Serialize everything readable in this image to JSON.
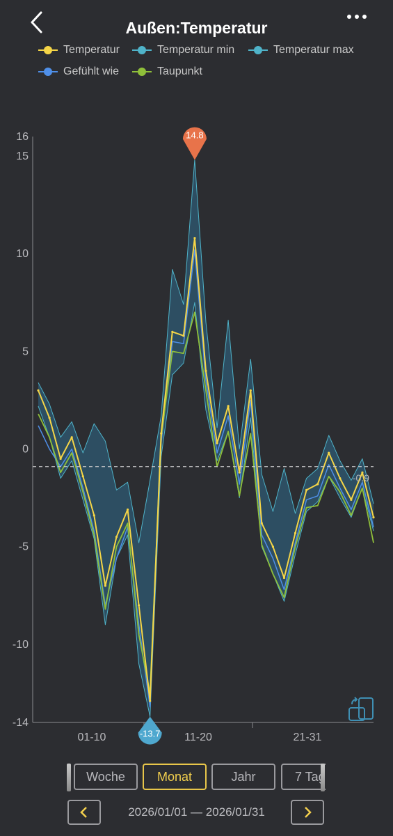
{
  "header": {
    "title": "Außen:Temperatur",
    "back_icon": "chevron-left-icon",
    "more_icon": "more-dots-icon"
  },
  "legend": [
    {
      "name": "Temperatur",
      "color": "#f5d547"
    },
    {
      "name": "Temperatur min",
      "color": "#4fb3c9"
    },
    {
      "name": "Temperatur max",
      "color": "#4fb3c9"
    },
    {
      "name": "Gefühlt wie",
      "color": "#4f8fe8"
    },
    {
      "name": "Taupunkt",
      "color": "#8fbf3a"
    }
  ],
  "chart_data": {
    "type": "line",
    "title": "Außen:Temperatur",
    "xlabel": "",
    "ylabel": "",
    "ylim": [
      -14,
      16
    ],
    "y_ticks": [
      16,
      15,
      10,
      5,
      0,
      -5,
      -10,
      -14
    ],
    "x_tick_labels": [
      "01-10",
      "11-20",
      "21-31"
    ],
    "reference_line": {
      "value": -0.9,
      "label": "-0.9",
      "style": "dashed"
    },
    "max_marker": {
      "value": 14.8,
      "label": "14.8",
      "color": "#e8734a"
    },
    "min_marker": {
      "value": -13.7,
      "label": "-13.7",
      "color": "#4fa8cf"
    },
    "x": [
      "01-01",
      "01-02",
      "01-03",
      "01-04",
      "01-05",
      "01-06",
      "01-07",
      "01-08",
      "01-09",
      "01-10",
      "01-11",
      "01-12",
      "01-13",
      "01-14",
      "01-15",
      "01-16",
      "01-17",
      "01-18",
      "01-19",
      "01-20",
      "01-21",
      "01-22",
      "01-23",
      "01-24",
      "01-25",
      "01-26",
      "01-27",
      "01-28",
      "01-29",
      "01-30",
      "01-31"
    ],
    "series": [
      {
        "name": "Temperatur",
        "color": "#f5d547",
        "values": [
          3.0,
          1.6,
          -0.5,
          0.6,
          -1.4,
          -3.4,
          -7.0,
          -4.5,
          -3.1,
          -8.0,
          -12.9,
          0.8,
          6.0,
          5.8,
          10.8,
          4.0,
          0.3,
          2.2,
          -1.2,
          3.0,
          -3.8,
          -5.0,
          -6.6,
          -4.3,
          -2.1,
          -1.8,
          -0.2,
          -1.5,
          -2.6,
          -1.2,
          -3.5
        ]
      },
      {
        "name": "Temperatur min",
        "color": "#4fb3c9",
        "values": [
          2.2,
          0.6,
          -1.5,
          -0.6,
          -2.6,
          -4.6,
          -9.0,
          -5.6,
          -4.4,
          -11.0,
          -13.7,
          -0.4,
          3.8,
          4.4,
          7.5,
          2.0,
          -0.6,
          0.9,
          -2.5,
          1.6,
          -5.0,
          -6.4,
          -7.8,
          -5.4,
          -3.2,
          -2.7,
          -1.4,
          -2.5,
          -3.5,
          -2.0,
          -4.2
        ]
      },
      {
        "name": "Temperatur max",
        "color": "#4fb3c9",
        "values": [
          3.4,
          2.3,
          0.6,
          1.4,
          -0.2,
          1.3,
          0.4,
          -2.1,
          -1.7,
          -4.8,
          -1.6,
          1.7,
          9.2,
          7.4,
          14.8,
          6.5,
          1.1,
          6.6,
          0.0,
          4.6,
          -1.3,
          -3.2,
          -1.0,
          -3.3,
          -1.5,
          -1.0,
          0.7,
          -0.6,
          -1.6,
          -0.5,
          -2.8
        ]
      },
      {
        "name": "Gefühlt wie",
        "color": "#4f8fe8",
        "values": [
          1.2,
          0.0,
          -0.9,
          0.0,
          -2.0,
          -4.2,
          -8.0,
          -5.6,
          -4.0,
          -9.0,
          -13.2,
          0.3,
          5.5,
          5.4,
          10.2,
          3.5,
          -0.2,
          1.7,
          -1.8,
          2.5,
          -4.4,
          -5.6,
          -7.2,
          -4.8,
          -2.6,
          -2.4,
          -0.8,
          -2.0,
          -3.1,
          -1.7,
          -4.0
        ]
      },
      {
        "name": "Taupunkt",
        "color": "#8fbf3a",
        "values": [
          1.8,
          0.6,
          -1.2,
          -0.2,
          -2.2,
          -4.4,
          -8.2,
          -5.0,
          -3.8,
          -9.5,
          -12.5,
          0.6,
          5.0,
          4.9,
          7.0,
          3.0,
          -0.9,
          0.9,
          -2.4,
          0.8,
          -4.9,
          -6.4,
          -7.6,
          -5.0,
          -3.0,
          -2.9,
          -1.4,
          -2.2,
          -3.4,
          -2.0,
          -4.8
        ]
      }
    ]
  },
  "periods": {
    "week": "Woche",
    "month": "Monat",
    "year": "Jahr",
    "seven_days": "7 Tag"
  },
  "date_range": "2026/01/01 — 2026/01/31",
  "rotate_icon": "rotate-screen-icon"
}
